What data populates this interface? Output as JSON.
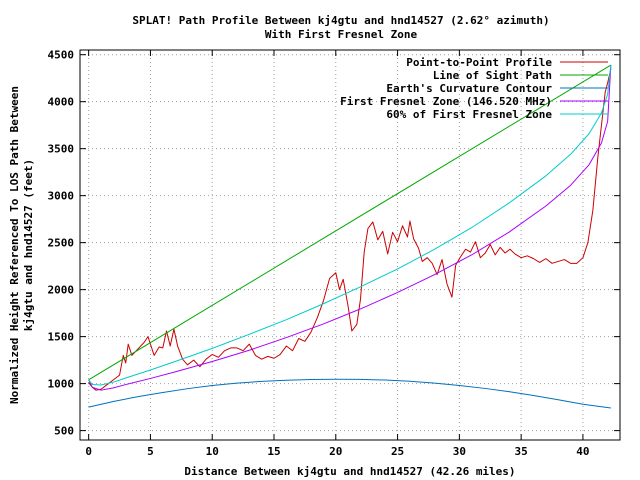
{
  "chart_data": {
    "type": "line",
    "title_line1": "SPLAT! Path Profile Between kj4gtu and hnd14527 (2.62° azimuth)",
    "title_line2": "With First Fresnel Zone",
    "xlabel": "Distance Between kj4gtu and hnd14527 (42.26 miles)",
    "ylabel_line1": "Normalized Height Referenced To LOS Path Between",
    "ylabel_line2": "kj4gtu and hnd14527 (feet)",
    "xlim": [
      -0.7,
      43.0
    ],
    "ylim": [
      400,
      4550
    ],
    "xticks": [
      0,
      5,
      10,
      15,
      20,
      25,
      30,
      35,
      40
    ],
    "yticks": [
      500,
      1000,
      1500,
      2000,
      2500,
      3000,
      3500,
      4000,
      4500
    ],
    "grid": true,
    "legend_position": "top-right",
    "series": [
      {
        "name": "Point-to-Point Profile",
        "color": "#cc0000",
        "points": [
          [
            0,
            1010
          ],
          [
            0.3,
            960
          ],
          [
            0.6,
            930
          ],
          [
            1,
            940
          ],
          [
            1.5,
            990
          ],
          [
            2,
            1040
          ],
          [
            2.5,
            1090
          ],
          [
            2.8,
            1300
          ],
          [
            3,
            1220
          ],
          [
            3.2,
            1420
          ],
          [
            3.5,
            1300
          ],
          [
            4,
            1370
          ],
          [
            4.5,
            1440
          ],
          [
            4.8,
            1500
          ],
          [
            5,
            1420
          ],
          [
            5.3,
            1300
          ],
          [
            5.7,
            1390
          ],
          [
            6,
            1380
          ],
          [
            6.3,
            1560
          ],
          [
            6.6,
            1400
          ],
          [
            6.9,
            1580
          ],
          [
            7.2,
            1400
          ],
          [
            7.6,
            1260
          ],
          [
            8,
            1200
          ],
          [
            8.5,
            1250
          ],
          [
            9,
            1180
          ],
          [
            9.5,
            1260
          ],
          [
            10,
            1310
          ],
          [
            10.5,
            1280
          ],
          [
            11,
            1350
          ],
          [
            11.5,
            1380
          ],
          [
            12,
            1380
          ],
          [
            12.5,
            1350
          ],
          [
            13,
            1420
          ],
          [
            13.5,
            1300
          ],
          [
            14,
            1260
          ],
          [
            14.5,
            1290
          ],
          [
            15,
            1270
          ],
          [
            15.5,
            1310
          ],
          [
            16,
            1400
          ],
          [
            16.5,
            1350
          ],
          [
            17,
            1480
          ],
          [
            17.5,
            1450
          ],
          [
            18,
            1550
          ],
          [
            18.5,
            1700
          ],
          [
            19,
            1880
          ],
          [
            19.5,
            2120
          ],
          [
            20,
            2180
          ],
          [
            20.3,
            2000
          ],
          [
            20.6,
            2110
          ],
          [
            21,
            1820
          ],
          [
            21.3,
            1560
          ],
          [
            21.7,
            1630
          ],
          [
            22,
            1900
          ],
          [
            22.3,
            2400
          ],
          [
            22.6,
            2650
          ],
          [
            23,
            2720
          ],
          [
            23.4,
            2530
          ],
          [
            23.8,
            2620
          ],
          [
            24.2,
            2380
          ],
          [
            24.6,
            2610
          ],
          [
            25,
            2510
          ],
          [
            25.4,
            2680
          ],
          [
            25.8,
            2560
          ],
          [
            26,
            2730
          ],
          [
            26.3,
            2540
          ],
          [
            26.7,
            2440
          ],
          [
            27,
            2300
          ],
          [
            27.4,
            2340
          ],
          [
            27.8,
            2280
          ],
          [
            28.2,
            2160
          ],
          [
            28.6,
            2320
          ],
          [
            29,
            2060
          ],
          [
            29.4,
            1920
          ],
          [
            29.7,
            2260
          ],
          [
            30.1,
            2350
          ],
          [
            30.5,
            2430
          ],
          [
            30.9,
            2400
          ],
          [
            31.3,
            2510
          ],
          [
            31.7,
            2340
          ],
          [
            32.1,
            2390
          ],
          [
            32.5,
            2480
          ],
          [
            32.9,
            2370
          ],
          [
            33.3,
            2450
          ],
          [
            33.7,
            2390
          ],
          [
            34.1,
            2430
          ],
          [
            34.5,
            2380
          ],
          [
            35,
            2340
          ],
          [
            35.5,
            2360
          ],
          [
            36,
            2330
          ],
          [
            36.5,
            2290
          ],
          [
            37,
            2330
          ],
          [
            37.5,
            2280
          ],
          [
            38,
            2300
          ],
          [
            38.5,
            2320
          ],
          [
            39,
            2280
          ],
          [
            39.5,
            2280
          ],
          [
            40,
            2340
          ],
          [
            40.4,
            2500
          ],
          [
            40.8,
            2840
          ],
          [
            41.2,
            3400
          ],
          [
            41.5,
            3750
          ],
          [
            41.8,
            4100
          ],
          [
            42,
            4200
          ],
          [
            42.26,
            4350
          ]
        ]
      },
      {
        "name": "Line of Sight Path",
        "color": "#00aa00",
        "points": [
          [
            0,
            1040
          ],
          [
            42.26,
            4390
          ]
        ]
      },
      {
        "name": "Earth's Curvature Contour",
        "color": "#0070c0",
        "points": [
          [
            0,
            750
          ],
          [
            2,
            810
          ],
          [
            4,
            862
          ],
          [
            6,
            906
          ],
          [
            8,
            946
          ],
          [
            10,
            980
          ],
          [
            12,
            1005
          ],
          [
            14,
            1024
          ],
          [
            16,
            1036
          ],
          [
            18,
            1044
          ],
          [
            20,
            1047
          ],
          [
            22,
            1045
          ],
          [
            24,
            1038
          ],
          [
            26,
            1025
          ],
          [
            28,
            1005
          ],
          [
            30,
            980
          ],
          [
            32,
            950
          ],
          [
            34,
            915
          ],
          [
            36,
            874
          ],
          [
            38,
            828
          ],
          [
            40,
            780
          ],
          [
            42.26,
            740
          ]
        ]
      },
      {
        "name": "First Fresnel Zone (146.520 MHz)",
        "color": "#aa00ff",
        "points": [
          [
            0,
            1040
          ],
          [
            0.3,
            960
          ],
          [
            1,
            930
          ],
          [
            2,
            955
          ],
          [
            3,
            990
          ],
          [
            5,
            1055
          ],
          [
            7,
            1125
          ],
          [
            10,
            1235
          ],
          [
            13,
            1355
          ],
          [
            16,
            1490
          ],
          [
            19,
            1635
          ],
          [
            22,
            1795
          ],
          [
            25,
            1970
          ],
          [
            28,
            2160
          ],
          [
            31,
            2370
          ],
          [
            34,
            2610
          ],
          [
            37,
            2890
          ],
          [
            39,
            3110
          ],
          [
            40.5,
            3330
          ],
          [
            41.5,
            3560
          ],
          [
            42,
            3790
          ],
          [
            42.26,
            4390
          ]
        ]
      },
      {
        "name": "60% of First Fresnel Zone",
        "color": "#00cccc",
        "points": [
          [
            0,
            1040
          ],
          [
            0.3,
            990
          ],
          [
            1,
            985
          ],
          [
            2,
            1015
          ],
          [
            3,
            1060
          ],
          [
            5,
            1145
          ],
          [
            7,
            1235
          ],
          [
            10,
            1375
          ],
          [
            13,
            1525
          ],
          [
            16,
            1680
          ],
          [
            19,
            1850
          ],
          [
            22,
            2030
          ],
          [
            25,
            2220
          ],
          [
            28,
            2430
          ],
          [
            31,
            2660
          ],
          [
            34,
            2920
          ],
          [
            37,
            3210
          ],
          [
            39,
            3440
          ],
          [
            40.5,
            3660
          ],
          [
            41.5,
            3880
          ],
          [
            42,
            4080
          ],
          [
            42.26,
            4390
          ]
        ]
      }
    ]
  }
}
